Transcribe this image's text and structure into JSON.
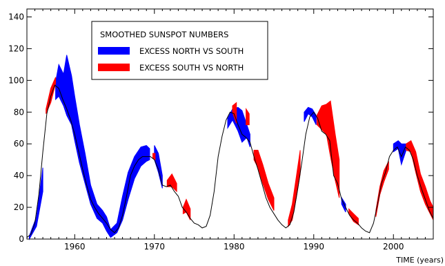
{
  "chart_data": {
    "type": "area",
    "title": "",
    "xlabel": "TIME (years)",
    "ylabel": "",
    "xlim": [
      1954,
      2005
    ],
    "ylim": [
      0,
      145
    ],
    "x_ticks": [
      1960,
      1970,
      1980,
      1990,
      2000
    ],
    "y_ticks": [
      0,
      20,
      40,
      60,
      80,
      100,
      120,
      140
    ],
    "grid": false,
    "legend": {
      "placement": "top-left",
      "title": "SMOOTHED SUNSPOT NUMBERS",
      "entries": [
        {
          "label": "EXCESS NORTH VS SOUTH",
          "color": "#0000ff"
        },
        {
          "label": "EXCESS SOUTH VS NORTH",
          "color": "#ff0000"
        }
      ]
    },
    "series": [
      {
        "name": "EXCESS NORTH VS SOUTH",
        "color": "#0000ff",
        "bands": [
          {
            "x": [
              1954.3,
              1955.2,
              1956.0
            ],
            "low": [
              0,
              8,
              30
            ],
            "high": [
              2,
              14,
              45
            ]
          },
          {
            "x": [
              1957.6,
              1958.0,
              1958.6,
              1959.0,
              1959.6,
              1960.0,
              1960.6,
              1961.3,
              1962.0,
              1962.8,
              1963.5,
              1964.0,
              1964.5,
              1965.3,
              1966.0,
              1966.7,
              1967.5,
              1968.3,
              1969.0,
              1969.4
            ],
            "low": [
              88,
              90,
              84,
              78,
              72,
              62,
              48,
              35,
              22,
              13,
              10,
              5,
              1,
              4,
              12,
              25,
              38,
              46,
              49,
              50
            ],
            "high": [
              99,
              110,
              104,
              116,
              103,
              90,
              72,
              54,
              34,
              22,
              18,
              14,
              6,
              10,
              27,
              42,
              52,
              58,
              59,
              57
            ]
          },
          {
            "x": [
              1970.0,
              1970.5,
              1971.0
            ],
            "low": [
              50,
              42,
              32
            ],
            "high": [
              59,
              54,
              40
            ]
          },
          {
            "x": [
              1979.2,
              1979.8,
              1980.5,
              1981.0,
              1981.6,
              1982.0
            ],
            "low": [
              70,
              75,
              68,
              61,
              64,
              58
            ],
            "high": [
              76,
              82,
              83,
              81,
              72,
              66
            ]
          },
          {
            "x": [
              1988.8,
              1989.3,
              1989.8,
              1990.3
            ],
            "low": [
              74,
              79,
              77,
              72
            ],
            "high": [
              80,
              83,
              82,
              78
            ]
          },
          {
            "x": [
              1993.5,
              1994.0
            ],
            "low": [
              22,
              17
            ],
            "high": [
              26,
              22
            ]
          },
          {
            "x": [
              2000.0,
              2000.6,
              2001.0,
              2001.6
            ],
            "low": [
              55,
              57,
              47,
              56
            ],
            "high": [
              60,
              62,
              60,
              60
            ]
          }
        ]
      },
      {
        "name": "EXCESS SOUTH VS NORTH",
        "color": "#ff0000",
        "bands": [
          {
            "x": [
              1956.4,
              1957.0,
              1957.6
            ],
            "low": [
              79,
              86,
              98
            ],
            "high": [
              82,
              95,
              102
            ]
          },
          {
            "x": [
              1969.8,
              1970.1
            ],
            "low": [
              51,
              50
            ],
            "high": [
              54,
              54
            ]
          },
          {
            "x": [
              1971.6,
              1972.2,
              1972.8
            ],
            "low": [
              33,
              33,
              30
            ],
            "high": [
              37,
              41,
              35
            ]
          },
          {
            "x": [
              1973.6,
              1974.0,
              1974.5
            ],
            "low": [
              16,
              17,
              12
            ],
            "high": [
              20,
              25,
              19
            ]
          },
          {
            "x": [
              1979.8,
              1980.3
            ],
            "low": [
              80,
              73
            ],
            "high": [
              84,
              86
            ]
          },
          {
            "x": [
              1981.5,
              1981.9
            ],
            "low": [
              72,
              72
            ],
            "high": [
              82,
              79
            ]
          },
          {
            "x": [
              1982.5,
              1983.0,
              1983.6,
              1984.3,
              1985.0
            ],
            "low": [
              50,
              45,
              35,
              25,
              18
            ],
            "high": [
              56,
              56,
              47,
              35,
              26
            ]
          },
          {
            "x": [
              1986.8,
              1987.3,
              1987.8,
              1988.3
            ],
            "low": [
              8,
              12,
              26,
              41
            ],
            "high": [
              12,
              22,
              39,
              56
            ]
          },
          {
            "x": [
              1990.4,
              1991.0,
              1991.6,
              1992.1,
              1992.7,
              1993.2
            ],
            "low": [
              72,
              69,
              66,
              52,
              37,
              26
            ],
            "high": [
              78,
              84,
              85,
              87,
              66,
              50
            ]
          },
          {
            "x": [
              1994.4,
              1995.0,
              1995.6
            ],
            "low": [
              16,
              11,
              9
            ],
            "high": [
              19,
              16,
              13
            ]
          },
          {
            "x": [
              1997.8,
              1998.3,
              1998.8,
              1999.4
            ],
            "low": [
              14,
              28,
              36,
              44
            ],
            "high": [
              18,
              33,
              43,
              49
            ]
          },
          {
            "x": [
              2001.6,
              2002.2,
              2002.8,
              2003.4,
              2004.0,
              2004.6,
              2005.0
            ],
            "low": [
              56,
              55,
              42,
              30,
              22,
              16,
              12
            ],
            "high": [
              60,
              62,
              55,
              41,
              33,
              24,
              20
            ]
          }
        ]
      }
    ],
    "total_curve": {
      "x": [
        1954.0,
        1954.5,
        1955.0,
        1955.5,
        1956.0,
        1956.5,
        1957.0,
        1957.5,
        1958.0,
        1958.5,
        1959.0,
        1959.5,
        1960.0,
        1960.5,
        1961.0,
        1961.5,
        1962.0,
        1962.5,
        1963.0,
        1963.5,
        1964.0,
        1964.5,
        1965.0,
        1965.5,
        1966.0,
        1966.5,
        1967.0,
        1967.5,
        1968.0,
        1968.5,
        1969.0,
        1969.5,
        1970.0,
        1970.5,
        1971.0,
        1971.5,
        1972.0,
        1972.5,
        1973.0,
        1973.5,
        1974.0,
        1974.5,
        1975.0,
        1975.5,
        1976.0,
        1976.5,
        1977.0,
        1977.5,
        1978.0,
        1978.5,
        1979.0,
        1979.5,
        1980.0,
        1980.5,
        1981.0,
        1981.5,
        1982.0,
        1982.5,
        1983.0,
        1983.5,
        1984.0,
        1984.5,
        1985.0,
        1985.5,
        1986.0,
        1986.5,
        1987.0,
        1987.5,
        1988.0,
        1988.5,
        1989.0,
        1989.5,
        1990.0,
        1990.5,
        1991.0,
        1991.5,
        1992.0,
        1992.5,
        1993.0,
        1993.5,
        1994.0,
        1994.5,
        1995.0,
        1995.5,
        1996.0,
        1996.5,
        1997.0,
        1997.5,
        1998.0,
        1998.5,
        1999.0,
        1999.5,
        2000.0,
        2000.5,
        2001.0,
        2001.5,
        2002.0,
        2002.5,
        2003.0,
        2003.5,
        2004.0,
        2004.5,
        2005.0
      ],
      "y": [
        1,
        3,
        10,
        28,
        55,
        79,
        90,
        97,
        95,
        88,
        82,
        75,
        66,
        55,
        44,
        34,
        25,
        20,
        16,
        13,
        10,
        6,
        4,
        7,
        15,
        27,
        40,
        46,
        50,
        52,
        52,
        52,
        50,
        44,
        34,
        33,
        34,
        30,
        27,
        20,
        17,
        13,
        10,
        9,
        7,
        8,
        15,
        30,
        52,
        65,
        75,
        80,
        79,
        72,
        66,
        64,
        61,
        52,
        44,
        35,
        26,
        20,
        16,
        12,
        9,
        7,
        9,
        17,
        32,
        48,
        66,
        77,
        80,
        76,
        68,
        66,
        62,
        40,
        35,
        25,
        20,
        15,
        12,
        10,
        7,
        5,
        4,
        10,
        22,
        35,
        42,
        52,
        56,
        58,
        52,
        58,
        56,
        50,
        40,
        32,
        25,
        18,
        13
      ]
    }
  }
}
